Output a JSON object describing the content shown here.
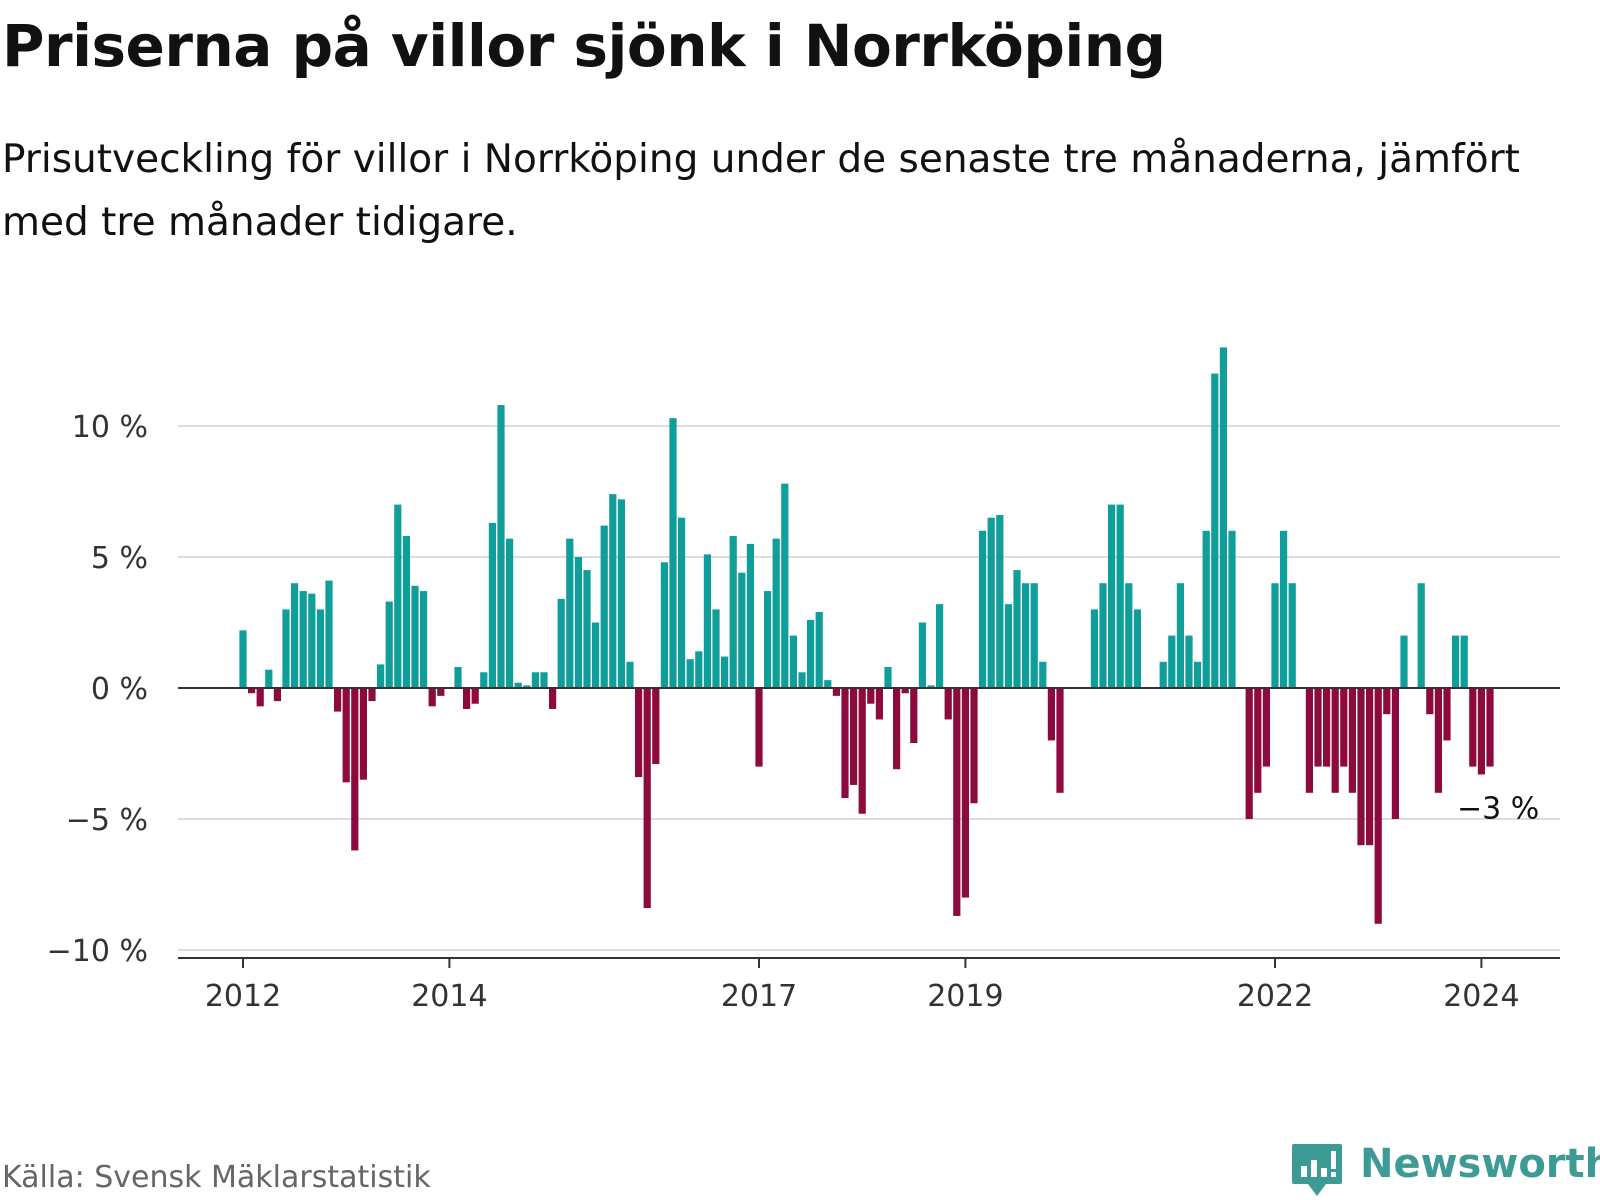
{
  "title": "Priserna på villor sjönk i Norrköping",
  "subtitle": "Prisutveckling för villor i Norrköping under de senaste tre månaderna, jämfört med tre månader tidigare.",
  "source": "Källa: Svensk Mäklarstatistik",
  "brand": {
    "name": "Newsworthy",
    "icon": "chart-bubble-icon"
  },
  "colors": {
    "positive": "#0f9e99",
    "negative": "#8c0a3c",
    "grid": "#dddddd",
    "axis": "#333333",
    "brand": "#3d9b96"
  },
  "chart_data": {
    "type": "bar",
    "title": "Priserna på villor sjönk i Norrköping",
    "xlabel": "",
    "ylabel": "",
    "ylim": [
      -10.3,
      13.3
    ],
    "y_ticks": [
      10,
      5,
      0,
      -5,
      -10
    ],
    "y_tick_labels": [
      "10 %",
      "5 %",
      "0 %",
      "−5 %",
      "−10 %"
    ],
    "x_ticks": [
      {
        "index": 0,
        "label": "2012"
      },
      {
        "index": 24,
        "label": "2014"
      },
      {
        "index": 60,
        "label": "2017"
      },
      {
        "index": 84,
        "label": "2019"
      },
      {
        "index": 120,
        "label": "2022"
      },
      {
        "index": 144,
        "label": "2024"
      }
    ],
    "start_index": 0,
    "last_value_label": "−3 %",
    "values": [
      2.2,
      -0.2,
      -0.7,
      0.7,
      -0.5,
      3.0,
      4.0,
      3.7,
      3.6,
      3.0,
      4.1,
      -0.9,
      -3.6,
      -6.2,
      -3.5,
      -0.5,
      0.9,
      3.3,
      7.0,
      5.8,
      3.9,
      3.7,
      -0.7,
      -0.3,
      0.0,
      0.8,
      -0.8,
      -0.6,
      0.6,
      6.3,
      10.8,
      5.7,
      0.2,
      0.1,
      0.6,
      0.6,
      -0.8,
      3.4,
      5.7,
      5.0,
      4.5,
      2.5,
      6.2,
      7.4,
      7.2,
      1.0,
      -3.4,
      -8.4,
      -2.9,
      4.8,
      10.3,
      6.5,
      1.1,
      1.4,
      5.1,
      3.0,
      1.2,
      5.8,
      4.4,
      5.5,
      -3.0,
      3.7,
      5.7,
      7.8,
      2.0,
      0.6,
      2.6,
      2.9,
      0.3,
      -0.3,
      -4.2,
      -3.7,
      -4.8,
      -0.6,
      -1.2,
      0.8,
      -3.1,
      -0.2,
      -2.1,
      2.5,
      0.1,
      3.2,
      -1.2,
      -8.7,
      -8.0,
      -4.4,
      6.0,
      6.5,
      6.6,
      3.2,
      4.5,
      4.0,
      4.0,
      1.0,
      -2.0,
      -4.0,
      0.0,
      0.0,
      0.0,
      3.0,
      4.0,
      7.0,
      7.0,
      4.0,
      3.0,
      0.0,
      0.0,
      1.0,
      2.0,
      4.0,
      2.0,
      1.0,
      6.0,
      12.0,
      13.0,
      6.0,
      0.0,
      -5.0,
      -4.0,
      -3.0,
      4.0,
      6.0,
      4.0,
      0.0,
      -4.0,
      -3.0,
      -3.0,
      -4.0,
      -3.0,
      -4.0,
      -6.0,
      -6.0,
      -9.0,
      -1.0,
      -5.0,
      2.0,
      0.0,
      4.0,
      -1.0,
      -4.0,
      -2.0,
      2.0,
      2.0,
      -3.0,
      -3.3,
      -3.0
    ]
  }
}
